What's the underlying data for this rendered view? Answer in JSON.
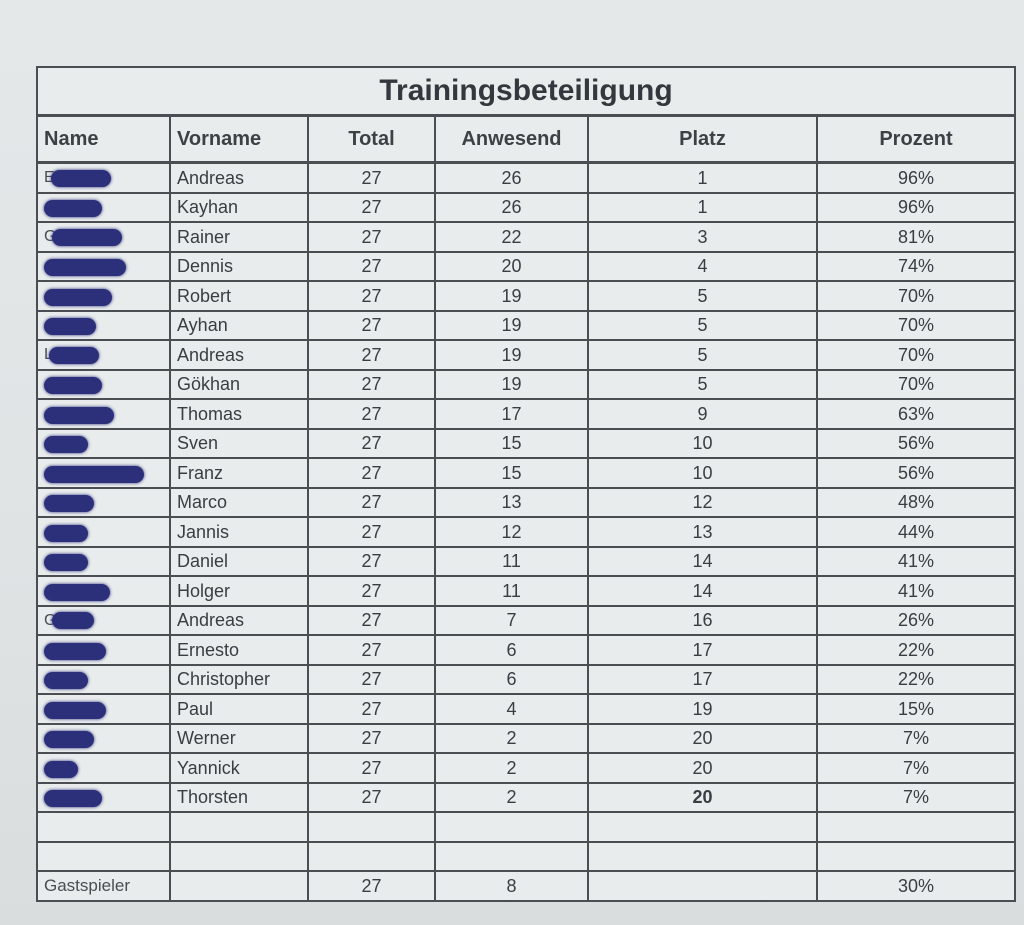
{
  "title": "Trainingsbeteiligung",
  "columns": [
    "Name",
    "Vorname",
    "Total",
    "Anwesend",
    "Platz",
    "Prozent"
  ],
  "rows": [
    {
      "name_initial": "E",
      "vorname": "Andreas",
      "total": "27",
      "anwesend": "26",
      "platz": "1",
      "prozent": "96%"
    },
    {
      "name_initial": "",
      "vorname": "Kayhan",
      "total": "27",
      "anwesend": "26",
      "platz": "1",
      "prozent": "96%"
    },
    {
      "name_initial": "G",
      "vorname": "Rainer",
      "total": "27",
      "anwesend": "22",
      "platz": "3",
      "prozent": "81%"
    },
    {
      "name_initial": "",
      "vorname": "Dennis",
      "total": "27",
      "anwesend": "20",
      "platz": "4",
      "prozent": "74%"
    },
    {
      "name_initial": "",
      "vorname": "Robert",
      "total": "27",
      "anwesend": "19",
      "platz": "5",
      "prozent": "70%"
    },
    {
      "name_initial": "",
      "vorname": "Ayhan",
      "total": "27",
      "anwesend": "19",
      "platz": "5",
      "prozent": "70%"
    },
    {
      "name_initial": "L",
      "vorname": "Andreas",
      "total": "27",
      "anwesend": "19",
      "platz": "5",
      "prozent": "70%"
    },
    {
      "name_initial": "",
      "vorname": "Gökhan",
      "total": "27",
      "anwesend": "19",
      "platz": "5",
      "prozent": "70%"
    },
    {
      "name_initial": "",
      "vorname": "Thomas",
      "total": "27",
      "anwesend": "17",
      "platz": "9",
      "prozent": "63%"
    },
    {
      "name_initial": "",
      "vorname": "Sven",
      "total": "27",
      "anwesend": "15",
      "platz": "10",
      "prozent": "56%"
    },
    {
      "name_initial": "",
      "vorname": "Franz",
      "total": "27",
      "anwesend": "15",
      "platz": "10",
      "prozent": "56%"
    },
    {
      "name_initial": "",
      "vorname": "Marco",
      "total": "27",
      "anwesend": "13",
      "platz": "12",
      "prozent": "48%"
    },
    {
      "name_initial": "",
      "vorname": "Jannis",
      "total": "27",
      "anwesend": "12",
      "platz": "13",
      "prozent": "44%"
    },
    {
      "name_initial": "",
      "vorname": "Daniel",
      "total": "27",
      "anwesend": "11",
      "platz": "14",
      "prozent": "41%"
    },
    {
      "name_initial": "",
      "vorname": "Holger",
      "total": "27",
      "anwesend": "11",
      "platz": "14",
      "prozent": "41%"
    },
    {
      "name_initial": "G",
      "vorname": "Andreas",
      "total": "27",
      "anwesend": "7",
      "platz": "16",
      "prozent": "26%"
    },
    {
      "name_initial": "",
      "vorname": "Ernesto",
      "total": "27",
      "anwesend": "6",
      "platz": "17",
      "prozent": "22%"
    },
    {
      "name_initial": "",
      "vorname": "Christopher",
      "total": "27",
      "anwesend": "6",
      "platz": "17",
      "prozent": "22%"
    },
    {
      "name_initial": "",
      "vorname": "Paul",
      "total": "27",
      "anwesend": "4",
      "platz": "19",
      "prozent": "15%"
    },
    {
      "name_initial": "",
      "vorname": "Werner",
      "total": "27",
      "anwesend": "2",
      "platz": "20",
      "prozent": "7%"
    },
    {
      "name_initial": "",
      "vorname": "Yannick",
      "total": "27",
      "anwesend": "2",
      "platz": "20",
      "prozent": "7%"
    },
    {
      "name_initial": "",
      "vorname": "Thorsten",
      "total": "27",
      "anwesend": "2",
      "platz": "20",
      "prozent": "7%"
    }
  ],
  "guest": {
    "label": "Gastspieler",
    "total": "27",
    "anwesend": "8",
    "platz": "",
    "prozent": "30%"
  },
  "colors": {
    "redaction": "#2c2f7a",
    "border": "#4a4d52",
    "paper": "#e8ecec"
  }
}
